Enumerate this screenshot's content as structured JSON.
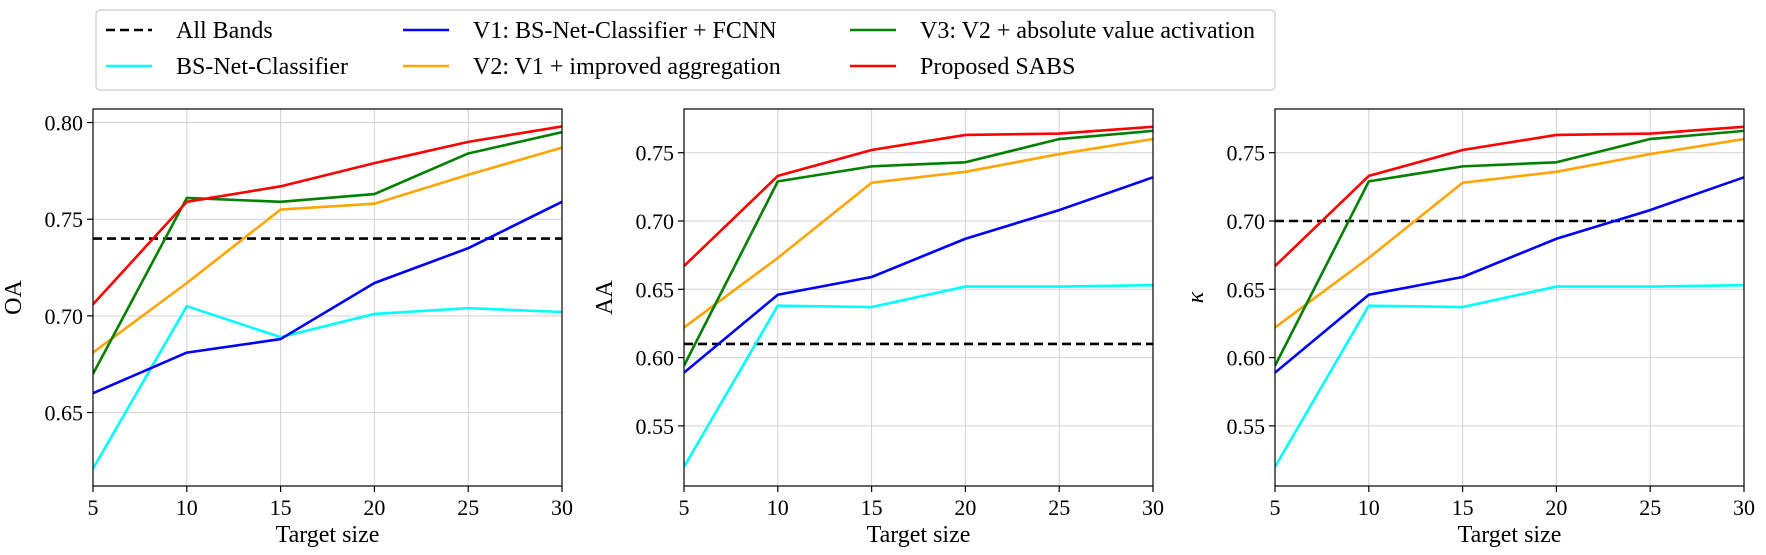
{
  "legend": {
    "entries": [
      {
        "key": "all_bands",
        "label": "All Bands",
        "color": "#000000",
        "dashed": true
      },
      {
        "key": "bs_net",
        "label": "BS-Net-Classifier",
        "color": "#00ffff",
        "dashed": false
      },
      {
        "key": "v1",
        "label": "V1: BS-Net-Classifier + FCNN",
        "color": "#0000ff",
        "dashed": false
      },
      {
        "key": "v2",
        "label": "V2: V1 + improved aggregation",
        "color": "#ffa500",
        "dashed": false
      },
      {
        "key": "v3",
        "label": "V3: V2 + absolute value activation",
        "color": "#008000",
        "dashed": false
      },
      {
        "key": "sabs",
        "label": "Proposed SABS",
        "color": "#ff0000",
        "dashed": false
      }
    ]
  },
  "chart_data": [
    {
      "type": "line",
      "xlabel": "Target size",
      "ylabel": "OA",
      "x": [
        5,
        10,
        15,
        20,
        25,
        30
      ],
      "xlim": [
        5,
        30
      ],
      "ylim": [
        0.612,
        0.807
      ],
      "xticks": [
        5,
        10,
        15,
        20,
        25,
        30
      ],
      "yticks": [
        0.65,
        0.7,
        0.75,
        0.8
      ],
      "ytick_labels": [
        "0.65",
        "0.70",
        "0.75",
        "0.80"
      ],
      "grid": true,
      "series": [
        {
          "key": "all_bands",
          "name": "All Bands",
          "values": [
            0.74,
            0.74,
            0.74,
            0.74,
            0.74,
            0.74
          ]
        },
        {
          "key": "bs_net",
          "name": "BS-Net-Classifier",
          "values": [
            0.621,
            0.705,
            0.689,
            0.701,
            0.704,
            0.702
          ]
        },
        {
          "key": "v1",
          "name": "V1: BS-Net-Classifier + FCNN",
          "values": [
            0.66,
            0.681,
            0.688,
            0.717,
            0.735,
            0.759
          ]
        },
        {
          "key": "v2",
          "name": "V2: V1 + improved aggregation",
          "values": [
            0.681,
            0.717,
            0.755,
            0.758,
            0.773,
            0.787
          ]
        },
        {
          "key": "v3",
          "name": "V3: V2 + absolute value activation",
          "values": [
            0.67,
            0.761,
            0.759,
            0.763,
            0.784,
            0.795
          ]
        },
        {
          "key": "sabs",
          "name": "Proposed SABS",
          "values": [
            0.706,
            0.759,
            0.767,
            0.779,
            0.79,
            0.798
          ]
        }
      ]
    },
    {
      "type": "line",
      "xlabel": "Target size",
      "ylabel": "AA",
      "x": [
        5,
        10,
        15,
        20,
        25,
        30
      ],
      "xlim": [
        5,
        30
      ],
      "ylim": [
        0.506,
        0.782
      ],
      "xticks": [
        5,
        10,
        15,
        20,
        25,
        30
      ],
      "yticks": [
        0.55,
        0.6,
        0.65,
        0.7,
        0.75
      ],
      "ytick_labels": [
        "0.55",
        "0.60",
        "0.65",
        "0.70",
        "0.75"
      ],
      "grid": true,
      "series": [
        {
          "key": "all_bands",
          "name": "All Bands",
          "values": [
            0.61,
            0.61,
            0.61,
            0.61,
            0.61,
            0.61
          ]
        },
        {
          "key": "bs_net",
          "name": "BS-Net-Classifier",
          "values": [
            0.52,
            0.638,
            0.637,
            0.652,
            0.652,
            0.653
          ]
        },
        {
          "key": "v1",
          "name": "V1: BS-Net-Classifier + FCNN",
          "values": [
            0.589,
            0.646,
            0.659,
            0.687,
            0.708,
            0.732
          ]
        },
        {
          "key": "v2",
          "name": "V2: V1 + improved aggregation",
          "values": [
            0.622,
            0.673,
            0.728,
            0.736,
            0.749,
            0.76
          ]
        },
        {
          "key": "v3",
          "name": "V3: V2 + absolute value activation",
          "values": [
            0.594,
            0.729,
            0.74,
            0.743,
            0.76,
            0.766
          ]
        },
        {
          "key": "sabs",
          "name": "Proposed SABS",
          "values": [
            0.667,
            0.733,
            0.752,
            0.763,
            0.764,
            0.769
          ]
        }
      ]
    },
    {
      "type": "line",
      "xlabel": "Target size",
      "ylabel": "κ",
      "x": [
        5,
        10,
        15,
        20,
        25,
        30
      ],
      "xlim": [
        5,
        30
      ],
      "ylim": [
        0.506,
        0.782
      ],
      "xticks": [
        5,
        10,
        15,
        20,
        25,
        30
      ],
      "yticks": [
        0.55,
        0.6,
        0.65,
        0.7,
        0.75
      ],
      "ytick_labels": [
        "0.55",
        "0.60",
        "0.65",
        "0.70",
        "0.75"
      ],
      "grid": true,
      "series": [
        {
          "key": "all_bands",
          "name": "All Bands",
          "values": [
            0.7,
            0.7,
            0.7,
            0.7,
            0.7,
            0.7
          ]
        },
        {
          "key": "bs_net",
          "name": "BS-Net-Classifier",
          "values": [
            0.52,
            0.638,
            0.637,
            0.652,
            0.652,
            0.653
          ]
        },
        {
          "key": "v1",
          "name": "V1: BS-Net-Classifier + FCNN",
          "values": [
            0.589,
            0.646,
            0.659,
            0.687,
            0.708,
            0.732
          ]
        },
        {
          "key": "v2",
          "name": "V2: V1 + improved aggregation",
          "values": [
            0.622,
            0.673,
            0.728,
            0.736,
            0.749,
            0.76
          ]
        },
        {
          "key": "v3",
          "name": "V3: V2 + absolute value activation",
          "values": [
            0.594,
            0.729,
            0.74,
            0.743,
            0.76,
            0.766
          ]
        },
        {
          "key": "sabs",
          "name": "Proposed SABS",
          "values": [
            0.667,
            0.733,
            0.752,
            0.763,
            0.764,
            0.769
          ]
        }
      ]
    }
  ]
}
